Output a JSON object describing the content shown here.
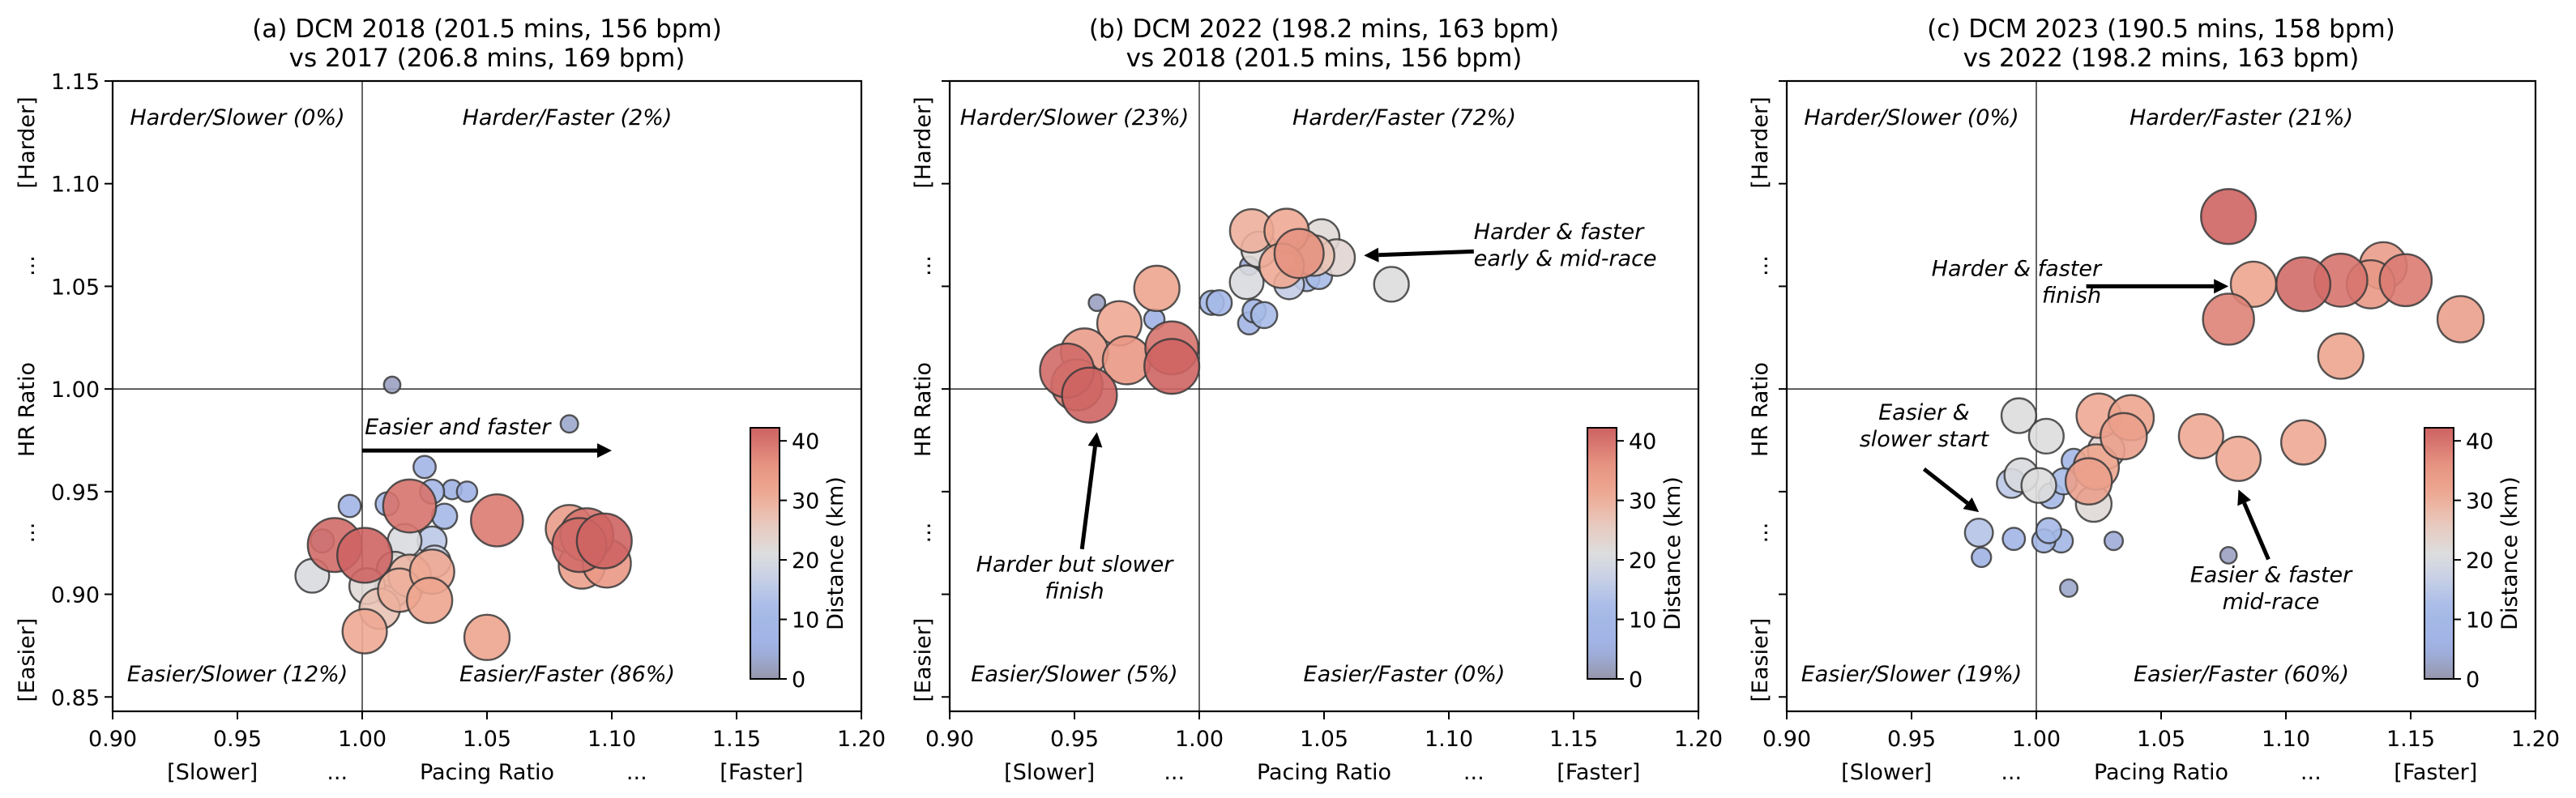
{
  "chart_data": [
    {
      "type": "scatter",
      "title": [
        "(a) DCM 2018 (201.5 mins, 156 bpm)",
        "vs 2017 (206.8 mins, 169 bpm)"
      ],
      "xlabel": "Pacing Ratio",
      "xlabel_left": "[Slower]",
      "xlabel_right": "[Faster]",
      "xlabel_ellipsis": "...",
      "ylabel": "HR Ratio",
      "ylabel_top": "[Harder]",
      "ylabel_bottom": "[Easier]",
      "ylabel_ellipsis": "...",
      "xlim": [
        0.9,
        1.2
      ],
      "ylim": [
        0.843,
        1.15
      ],
      "xticks": [
        "0.90",
        "0.95",
        "1.00",
        "1.05",
        "1.10",
        "1.15",
        "1.20"
      ],
      "yticks": [
        "0.85",
        "0.90",
        "0.95",
        "1.00",
        "1.05",
        "1.10",
        "1.15"
      ],
      "show_ytick_labels": true,
      "reference_lines": {
        "x": 1.0,
        "y": 1.0
      },
      "quadrant_labels": {
        "top_left": "Harder/Slower (0%)",
        "top_right": "Harder/Faster (2%)",
        "bottom_left": "Easier/Slower (12%)",
        "bottom_right": "Easier/Faster (86%)"
      },
      "annotations": [
        {
          "text": [
            "Easier and faster"
          ],
          "text_at": [
            1.001,
            0.978
          ],
          "anchor": "start",
          "arrow_from": [
            1.0,
            0.97
          ],
          "arrow_to": [
            1.1,
            0.97
          ]
        }
      ],
      "colorbar": {
        "label": "Distance (km)",
        "ticks": [
          "0",
          "10",
          "20",
          "30",
          "40"
        ],
        "range": [
          0,
          42.2
        ]
      },
      "points": [
        {
          "x": 1.012,
          "y": 1.002,
          "d": 2
        },
        {
          "x": 1.083,
          "y": 0.983,
          "d": 3
        },
        {
          "x": 1.025,
          "y": 0.962,
          "d": 8
        },
        {
          "x": 0.995,
          "y": 0.943,
          "d": 8
        },
        {
          "x": 1.01,
          "y": 0.944,
          "d": 9
        },
        {
          "x": 1.028,
          "y": 0.95,
          "d": 10
        },
        {
          "x": 1.036,
          "y": 0.951,
          "d": 5
        },
        {
          "x": 1.042,
          "y": 0.95,
          "d": 6
        },
        {
          "x": 1.033,
          "y": 0.938,
          "d": 11
        },
        {
          "x": 0.984,
          "y": 0.926,
          "d": 9
        },
        {
          "x": 0.98,
          "y": 0.909,
          "d": 20
        },
        {
          "x": 1.017,
          "y": 0.926,
          "d": 20
        },
        {
          "x": 1.028,
          "y": 0.926,
          "d": 15
        },
        {
          "x": 1.029,
          "y": 0.916,
          "d": 18
        },
        {
          "x": 1.013,
          "y": 0.912,
          "d": 22
        },
        {
          "x": 1.002,
          "y": 0.904,
          "d": 22
        },
        {
          "x": 1.012,
          "y": 0.902,
          "d": 21
        },
        {
          "x": 1.019,
          "y": 0.909,
          "d": 29
        },
        {
          "x": 1.028,
          "y": 0.911,
          "d": 31
        },
        {
          "x": 1.015,
          "y": 0.902,
          "d": 30
        },
        {
          "x": 1.007,
          "y": 0.893,
          "d": 27
        },
        {
          "x": 1.027,
          "y": 0.897,
          "d": 32
        },
        {
          "x": 1.001,
          "y": 0.882,
          "d": 31
        },
        {
          "x": 1.05,
          "y": 0.879,
          "d": 32
        },
        {
          "x": 1.019,
          "y": 0.943,
          "d": 40
        },
        {
          "x": 0.989,
          "y": 0.924,
          "d": 41
        },
        {
          "x": 1.001,
          "y": 0.919,
          "d": 42
        },
        {
          "x": 1.054,
          "y": 0.936,
          "d": 39
        },
        {
          "x": 1.083,
          "y": 0.932,
          "d": 34
        },
        {
          "x": 1.088,
          "y": 0.914,
          "d": 33
        },
        {
          "x": 1.098,
          "y": 0.915,
          "d": 35
        },
        {
          "x": 1.09,
          "y": 0.929,
          "d": 40
        },
        {
          "x": 1.087,
          "y": 0.924,
          "d": 41
        },
        {
          "x": 1.097,
          "y": 0.926,
          "d": 42
        }
      ]
    },
    {
      "type": "scatter",
      "title": [
        "(b) DCM 2022 (198.2 mins, 163 bpm)",
        "vs 2018 (201.5 mins, 156 bpm)"
      ],
      "xlabel": "Pacing Ratio",
      "xlabel_left": "[Slower]",
      "xlabel_right": "[Faster]",
      "xlabel_ellipsis": "...",
      "ylabel": "HR Ratio",
      "ylabel_top": "[Harder]",
      "ylabel_bottom": "[Easier]",
      "ylabel_ellipsis": "...",
      "xlim": [
        0.9,
        1.2
      ],
      "ylim": [
        0.843,
        1.15
      ],
      "xticks": [
        "0.90",
        "0.95",
        "1.00",
        "1.05",
        "1.10",
        "1.15",
        "1.20"
      ],
      "yticks": [
        "0.85",
        "0.90",
        "0.95",
        "1.00",
        "1.05",
        "1.10",
        "1.15"
      ],
      "show_ytick_labels": false,
      "reference_lines": {
        "x": 1.0,
        "y": 1.0
      },
      "quadrant_labels": {
        "top_left": "Harder/Slower (23%)",
        "top_right": "Harder/Faster (72%)",
        "bottom_left": "Easier/Slower (5%)",
        "bottom_right": "Easier/Faster (0%)"
      },
      "annotations": [
        {
          "text": [
            "Harder & faster",
            "early & mid-race"
          ],
          "text_at": [
            1.11,
            1.073
          ],
          "anchor": "start",
          "arrow_from": [
            1.11,
            1.067
          ],
          "arrow_to": [
            1.066,
            1.065
          ]
        },
        {
          "text": [
            "Harder but slower",
            "finish"
          ],
          "text_at": [
            0.95,
            0.911
          ],
          "anchor": "middle",
          "arrow_from": [
            0.953,
            0.922
          ],
          "arrow_to": [
            0.959,
            0.979
          ]
        }
      ],
      "colorbar": {
        "label": "Distance (km)",
        "ticks": [
          "0",
          "10",
          "20",
          "30",
          "40"
        ],
        "range": [
          0,
          42.2
        ]
      },
      "points": [
        {
          "x": 0.959,
          "y": 1.042,
          "d": 2
        },
        {
          "x": 0.982,
          "y": 1.034,
          "d": 6
        },
        {
          "x": 1.005,
          "y": 1.042,
          "d": 10
        },
        {
          "x": 1.008,
          "y": 1.042,
          "d": 11
        },
        {
          "x": 1.02,
          "y": 1.032,
          "d": 8
        },
        {
          "x": 1.022,
          "y": 1.038,
          "d": 9
        },
        {
          "x": 1.026,
          "y": 1.036,
          "d": 12
        },
        {
          "x": 1.02,
          "y": 1.06,
          "d": 4
        },
        {
          "x": 1.043,
          "y": 1.054,
          "d": 12
        },
        {
          "x": 1.048,
          "y": 1.055,
          "d": 12
        },
        {
          "x": 1.036,
          "y": 1.051,
          "d": 16
        },
        {
          "x": 1.019,
          "y": 1.052,
          "d": 20
        },
        {
          "x": 1.024,
          "y": 1.068,
          "d": 22
        },
        {
          "x": 1.049,
          "y": 1.074,
          "d": 22
        },
        {
          "x": 1.055,
          "y": 1.064,
          "d": 23
        },
        {
          "x": 1.077,
          "y": 1.051,
          "d": 21
        },
        {
          "x": 1.046,
          "y": 1.065,
          "d": 27
        },
        {
          "x": 1.021,
          "y": 1.077,
          "d": 30
        },
        {
          "x": 1.035,
          "y": 1.077,
          "d": 31
        },
        {
          "x": 1.033,
          "y": 1.06,
          "d": 31
        },
        {
          "x": 1.04,
          "y": 1.066,
          "d": 36
        },
        {
          "x": 0.968,
          "y": 1.032,
          "d": 31
        },
        {
          "x": 0.983,
          "y": 1.049,
          "d": 32
        },
        {
          "x": 0.954,
          "y": 1.018,
          "d": 34
        },
        {
          "x": 0.971,
          "y": 1.014,
          "d": 35
        },
        {
          "x": 0.951,
          "y": 1.002,
          "d": 38
        },
        {
          "x": 0.989,
          "y": 1.02,
          "d": 40
        },
        {
          "x": 0.989,
          "y": 1.011,
          "d": 42
        },
        {
          "x": 0.947,
          "y": 1.009,
          "d": 41
        },
        {
          "x": 0.956,
          "y": 0.997,
          "d": 42
        }
      ]
    },
    {
      "type": "scatter",
      "title": [
        "(c) DCM 2023 (190.5 mins, 158 bpm)",
        "vs 2022 (198.2 mins, 163 bpm)"
      ],
      "xlabel": "Pacing Ratio",
      "xlabel_left": "[Slower]",
      "xlabel_right": "[Faster]",
      "xlabel_ellipsis": "...",
      "ylabel": "HR Ratio",
      "ylabel_top": "[Harder]",
      "ylabel_bottom": "[Easier]",
      "ylabel_ellipsis": "...",
      "xlim": [
        0.9,
        1.2
      ],
      "ylim": [
        0.843,
        1.15
      ],
      "xticks": [
        "0.90",
        "0.95",
        "1.00",
        "1.05",
        "1.10",
        "1.15",
        "1.20"
      ],
      "yticks": [
        "0.85",
        "0.90",
        "0.95",
        "1.00",
        "1.05",
        "1.10",
        "1.15"
      ],
      "show_ytick_labels": false,
      "reference_lines": {
        "x": 1.0,
        "y": 1.0
      },
      "quadrant_labels": {
        "top_left": "Harder/Slower (0%)",
        "top_right": "Harder/Faster (21%)",
        "bottom_left": "Easier/Slower (19%)",
        "bottom_right": "Easier/Faster (60%)"
      },
      "annotations": [
        {
          "text": [
            "Harder & faster",
            "finish"
          ],
          "text_at": [
            1.026,
            1.055
          ],
          "anchor": "end",
          "arrow_from": [
            1.02,
            1.05
          ],
          "arrow_to": [
            1.077,
            1.05
          ]
        },
        {
          "text": [
            "Easier &",
            "slower start"
          ],
          "text_at": [
            0.955,
            0.985
          ],
          "anchor": "middle",
          "arrow_from": [
            0.955,
            0.961
          ],
          "arrow_to": [
            0.977,
            0.94
          ]
        },
        {
          "text": [
            "Easier & faster",
            "mid-race"
          ],
          "text_at": [
            1.094,
            0.906
          ],
          "anchor": "middle",
          "arrow_from": [
            1.093,
            0.917
          ],
          "arrow_to": [
            1.081,
            0.951
          ]
        }
      ],
      "colorbar": {
        "label": "Distance (km)",
        "ticks": [
          "0",
          "10",
          "20",
          "30",
          "40"
        ],
        "range": [
          0,
          42.2
        ]
      },
      "points": [
        {
          "x": 1.077,
          "y": 0.919,
          "d": 2
        },
        {
          "x": 1.013,
          "y": 0.903,
          "d": 3
        },
        {
          "x": 1.031,
          "y": 0.926,
          "d": 4
        },
        {
          "x": 0.978,
          "y": 0.918,
          "d": 5
        },
        {
          "x": 0.991,
          "y": 0.927,
          "d": 8
        },
        {
          "x": 1.01,
          "y": 0.926,
          "d": 9
        },
        {
          "x": 1.003,
          "y": 0.926,
          "d": 9
        },
        {
          "x": 1.015,
          "y": 0.965,
          "d": 10
        },
        {
          "x": 1.005,
          "y": 0.931,
          "d": 11
        },
        {
          "x": 1.006,
          "y": 0.948,
          "d": 11
        },
        {
          "x": 1.011,
          "y": 0.955,
          "d": 12
        },
        {
          "x": 0.977,
          "y": 0.93,
          "d": 14
        },
        {
          "x": 0.99,
          "y": 0.954,
          "d": 15
        },
        {
          "x": 0.994,
          "y": 0.958,
          "d": 20
        },
        {
          "x": 0.993,
          "y": 0.987,
          "d": 21
        },
        {
          "x": 1.004,
          "y": 0.977,
          "d": 21
        },
        {
          "x": 1.001,
          "y": 0.953,
          "d": 21
        },
        {
          "x": 1.023,
          "y": 0.944,
          "d": 22
        },
        {
          "x": 1.028,
          "y": 0.97,
          "d": 23
        },
        {
          "x": 1.025,
          "y": 0.987,
          "d": 31
        },
        {
          "x": 1.038,
          "y": 0.986,
          "d": 32
        },
        {
          "x": 1.035,
          "y": 0.977,
          "d": 33
        },
        {
          "x": 1.024,
          "y": 0.962,
          "d": 32
        },
        {
          "x": 1.021,
          "y": 0.955,
          "d": 33
        },
        {
          "x": 1.066,
          "y": 0.977,
          "d": 31
        },
        {
          "x": 1.081,
          "y": 0.966,
          "d": 31
        },
        {
          "x": 1.107,
          "y": 0.974,
          "d": 31
        },
        {
          "x": 1.122,
          "y": 1.016,
          "d": 32
        },
        {
          "x": 1.17,
          "y": 1.034,
          "d": 33
        },
        {
          "x": 1.087,
          "y": 1.051,
          "d": 32
        },
        {
          "x": 1.134,
          "y": 1.051,
          "d": 35
        },
        {
          "x": 1.139,
          "y": 1.06,
          "d": 34
        },
        {
          "x": 1.077,
          "y": 1.034,
          "d": 38
        },
        {
          "x": 1.148,
          "y": 1.053,
          "d": 39
        },
        {
          "x": 1.122,
          "y": 1.053,
          "d": 40
        },
        {
          "x": 1.107,
          "y": 1.051,
          "d": 41
        },
        {
          "x": 1.077,
          "y": 1.084,
          "d": 42
        }
      ]
    }
  ]
}
